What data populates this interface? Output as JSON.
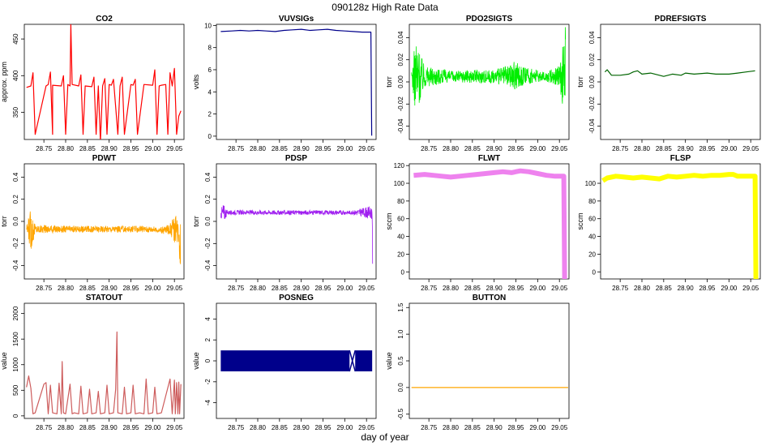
{
  "figure": {
    "title": "090128z   High Rate Data",
    "xlabel": "day of year"
  },
  "chart_data": [
    {
      "id": "co2",
      "type": "line",
      "title": "CO2",
      "ylabel": "approx. ppm",
      "color": "#ff0000",
      "xlim": [
        28.705,
        29.072
      ],
      "ylim": [
        313,
        470
      ],
      "xticks": [
        28.75,
        28.8,
        28.85,
        28.9,
        28.95,
        29.0,
        29.05
      ],
      "yticks": [
        350,
        400,
        450
      ],
      "ytick_labels": [
        "350",
        "400",
        "450"
      ],
      "yrotate": true,
      "x": [
        28.71,
        28.72,
        28.725,
        28.73,
        28.755,
        28.76,
        28.765,
        28.77,
        28.77,
        28.79,
        28.795,
        28.8,
        28.805,
        28.81,
        28.812,
        28.815,
        28.83,
        28.835,
        28.84,
        28.845,
        28.86,
        28.865,
        28.87,
        28.875,
        28.88,
        28.885,
        28.89,
        28.895,
        28.9,
        28.905,
        28.91,
        28.92,
        28.925,
        28.93,
        28.935,
        28.95,
        28.955,
        28.96,
        28.965,
        28.98,
        29.0,
        29.005,
        29.01,
        29.015,
        29.02,
        29.03,
        29.035,
        29.04,
        29.045,
        29.05,
        29.055,
        29.06,
        29.065
      ],
      "y": [
        384,
        386,
        404,
        320,
        386,
        388,
        405,
        320,
        387,
        386,
        400,
        320,
        388,
        386,
        470,
        388,
        386,
        401,
        320,
        386,
        385,
        398,
        320,
        386,
        310,
        386,
        396,
        320,
        388,
        387,
        395,
        320,
        386,
        398,
        320,
        388,
        387,
        395,
        320,
        388,
        387,
        408,
        320,
        386,
        387,
        388,
        320,
        404,
        386,
        410,
        320,
        345,
        352
      ]
    },
    {
      "id": "vuvsigs",
      "type": "line",
      "title": "VUVSIGs",
      "ylabel": "volts",
      "color": "#00008b",
      "xlim": [
        28.705,
        29.072
      ],
      "ylim": [
        -0.3,
        10.1
      ],
      "xticks": [
        28.75,
        28.8,
        28.85,
        28.9,
        28.95,
        29.0,
        29.05
      ],
      "yticks": [
        0,
        2,
        4,
        6,
        8,
        10
      ],
      "ytick_labels": [
        "0",
        "2",
        "4",
        "6",
        "8",
        "10"
      ],
      "yrotate": false,
      "x": [
        28.715,
        28.74,
        28.76,
        28.78,
        28.8,
        28.82,
        28.84,
        28.86,
        28.88,
        28.9,
        28.92,
        28.94,
        28.96,
        28.98,
        29.0,
        29.02,
        29.04,
        29.06,
        29.062
      ],
      "y": [
        9.45,
        9.5,
        9.55,
        9.5,
        9.55,
        9.5,
        9.45,
        9.55,
        9.6,
        9.65,
        9.55,
        9.6,
        9.65,
        9.55,
        9.5,
        9.45,
        9.4,
        9.4,
        0.05
      ]
    },
    {
      "id": "pdo2sigts",
      "type": "noise",
      "title": "PDO2SIGTS",
      "ylabel": "torr",
      "color": "#00ee00",
      "xlim": [
        28.705,
        29.072
      ],
      "ylim": [
        -0.052,
        0.052
      ],
      "xticks": [
        28.75,
        28.8,
        28.85,
        28.9,
        28.95,
        29.0,
        29.05
      ],
      "yticks": [
        -0.04,
        -0.02,
        0.0,
        0.02,
        0.04
      ],
      "ytick_labels": [
        "-0.04",
        "-0.02",
        "0.00",
        "0.02",
        "0.04"
      ],
      "yrotate": true,
      "x": [
        28.71,
        28.72,
        28.74,
        28.8,
        28.85,
        28.9,
        28.93,
        28.95,
        28.97,
        29.0,
        29.01,
        29.03,
        29.05,
        29.058,
        29.064
      ],
      "ymid": [
        0.005,
        0.005,
        0.005,
        0.005,
        0.005,
        0.005,
        0.005,
        0.006,
        0.005,
        0.005,
        0.005,
        0.005,
        0.005,
        0.004,
        0.008
      ],
      "band": [
        0.004,
        0.035,
        0.01,
        0.005,
        0.006,
        0.006,
        0.01,
        0.014,
        0.008,
        0.006,
        0.004,
        0.006,
        0.01,
        0.03,
        0.045
      ]
    },
    {
      "id": "pdrefsigts",
      "type": "line",
      "title": "PDREFSIGTS",
      "ylabel": "torr",
      "color": "#006400",
      "xlim": [
        28.705,
        29.072
      ],
      "ylim": [
        -0.052,
        0.052
      ],
      "xticks": [
        28.75,
        28.8,
        28.85,
        28.9,
        28.95,
        29.0,
        29.05
      ],
      "yticks": [
        -0.04,
        -0.02,
        0.0,
        0.02,
        0.04
      ],
      "ytick_labels": [
        "-0.04",
        "-0.02",
        "0.00",
        "0.02",
        "0.04"
      ],
      "yrotate": true,
      "x": [
        28.715,
        28.72,
        28.73,
        28.75,
        28.77,
        28.78,
        28.79,
        28.8,
        28.82,
        28.84,
        28.85,
        28.87,
        28.89,
        28.9,
        28.92,
        28.95,
        28.97,
        29.0,
        29.02,
        29.04,
        29.06
      ],
      "y": [
        0.009,
        0.011,
        0.006,
        0.006,
        0.007,
        0.009,
        0.01,
        0.007,
        0.008,
        0.006,
        0.005,
        0.007,
        0.006,
        0.008,
        0.007,
        0.008,
        0.007,
        0.007,
        0.008,
        0.009,
        0.01
      ]
    },
    {
      "id": "pdwt",
      "type": "noise",
      "title": "PDWT",
      "ylabel": "torr",
      "color": "#ffa500",
      "xlim": [
        28.705,
        29.072
      ],
      "ylim": [
        -0.52,
        0.52
      ],
      "xticks": [
        28.75,
        28.8,
        28.85,
        28.9,
        28.95,
        29.0,
        29.05
      ],
      "yticks": [
        -0.4,
        -0.2,
        0.0,
        0.2,
        0.4
      ],
      "ytick_labels": [
        "-0.4",
        "-0.2",
        "0.0",
        "0.2",
        "0.4"
      ],
      "yrotate": true,
      "x": [
        28.71,
        28.72,
        28.73,
        28.8,
        28.9,
        29.0,
        29.01,
        29.02,
        29.04,
        29.05,
        29.06,
        29.064
      ],
      "ymid": [
        -0.07,
        -0.07,
        -0.07,
        -0.07,
        -0.07,
        -0.07,
        -0.08,
        -0.08,
        -0.07,
        -0.07,
        -0.07,
        -0.2
      ],
      "band": [
        0.02,
        0.2,
        0.04,
        0.03,
        0.03,
        0.03,
        0.02,
        0.03,
        0.05,
        0.12,
        0.12,
        0.3
      ]
    },
    {
      "id": "pdsp",
      "type": "noise",
      "title": "PDSP",
      "ylabel": "torr",
      "color": "#a020f0",
      "xlim": [
        28.705,
        29.072
      ],
      "ylim": [
        -0.52,
        0.52
      ],
      "xticks": [
        28.75,
        28.8,
        28.85,
        28.9,
        28.95,
        29.0,
        29.05
      ],
      "yticks": [
        -0.4,
        -0.2,
        0.0,
        0.2,
        0.4
      ],
      "ytick_labels": [
        "-0.4",
        "-0.2",
        "0.0",
        "0.2",
        "0.4"
      ],
      "yrotate": true,
      "x": [
        28.715,
        28.72,
        28.73,
        28.8,
        28.9,
        29.0,
        29.01,
        29.02,
        29.05,
        29.058,
        29.063,
        29.064
      ],
      "ymid": [
        0.07,
        0.07,
        0.08,
        0.08,
        0.08,
        0.08,
        0.08,
        0.08,
        0.08,
        0.08,
        0.07,
        -0.3
      ],
      "band": [
        0.03,
        0.1,
        0.02,
        0.02,
        0.02,
        0.02,
        0.015,
        0.02,
        0.05,
        0.06,
        0.05,
        0.3
      ]
    },
    {
      "id": "flwt",
      "type": "line",
      "title": "FLWT",
      "ylabel": "sccm",
      "color": "#ee82ee",
      "linewidth": 6,
      "xlim": [
        28.705,
        29.072
      ],
      "ylim": [
        -8,
        122
      ],
      "xticks": [
        28.75,
        28.8,
        28.85,
        28.9,
        28.95,
        29.0,
        29.05
      ],
      "yticks": [
        0,
        20,
        40,
        60,
        80,
        100,
        120
      ],
      "ytick_labels": [
        "0",
        "20",
        "40",
        "60",
        "80",
        "100",
        "120"
      ],
      "yrotate": false,
      "x": [
        28.715,
        28.74,
        28.76,
        28.78,
        28.8,
        28.82,
        28.84,
        28.86,
        28.88,
        28.9,
        28.92,
        28.94,
        28.96,
        28.98,
        29.0,
        29.01,
        29.02,
        29.04,
        29.06,
        29.062
      ],
      "y": [
        109,
        110,
        109,
        108,
        107,
        108,
        109,
        110,
        111,
        112,
        113,
        112,
        114,
        113,
        111,
        110,
        109,
        108,
        108,
        -8
      ]
    },
    {
      "id": "flsp",
      "type": "line",
      "title": "FLSP",
      "ylabel": "sccm",
      "color": "#ffff00",
      "linewidth": 6,
      "xlim": [
        28.705,
        29.072
      ],
      "ylim": [
        -8,
        122
      ],
      "xticks": [
        28.75,
        28.8,
        28.85,
        28.9,
        28.95,
        29.0,
        29.05
      ],
      "yticks": [
        0,
        20,
        40,
        60,
        80,
        100
      ],
      "ytick_labels": [
        "0",
        "20",
        "40",
        "60",
        "80",
        "100"
      ],
      "yrotate": false,
      "x": [
        28.71,
        28.72,
        28.74,
        28.76,
        28.78,
        28.8,
        28.82,
        28.84,
        28.86,
        28.88,
        28.9,
        28.92,
        28.94,
        28.96,
        28.98,
        29.0,
        29.01,
        29.02,
        29.04,
        29.06,
        29.062
      ],
      "y": [
        103,
        106,
        108,
        107,
        106,
        107,
        106,
        105,
        108,
        107,
        108,
        109,
        108,
        109,
        109,
        110,
        110,
        108,
        108,
        108,
        -8
      ]
    },
    {
      "id": "statout",
      "type": "line",
      "title": "STATOUT",
      "ylabel": "value",
      "color": "#cd5c5c",
      "xlim": [
        28.705,
        29.072
      ],
      "ylim": [
        -50,
        2200
      ],
      "xticks": [
        28.75,
        28.8,
        28.85,
        28.9,
        28.95,
        29.0,
        29.05
      ],
      "yticks": [
        0,
        500,
        1000,
        1500,
        2000
      ],
      "ytick_labels": [
        "0",
        "500",
        "1000",
        "1500",
        "2000"
      ],
      "yrotate": true,
      "x": [
        28.71,
        28.715,
        28.72,
        28.725,
        28.73,
        28.75,
        28.755,
        28.76,
        28.765,
        28.77,
        28.78,
        28.785,
        28.79,
        28.792,
        28.795,
        28.8,
        28.81,
        28.815,
        28.82,
        28.83,
        28.835,
        28.84,
        28.85,
        28.855,
        28.86,
        28.87,
        28.875,
        28.88,
        28.89,
        28.895,
        28.9,
        28.91,
        28.915,
        28.918,
        28.92,
        28.93,
        28.935,
        28.94,
        28.95,
        28.955,
        28.96,
        28.97,
        28.98,
        28.985,
        28.99,
        29.0,
        29.005,
        29.01,
        29.02,
        29.04,
        29.045,
        29.05,
        29.052,
        29.055,
        29.058,
        29.06,
        29.062,
        29.065
      ],
      "y": [
        560,
        780,
        540,
        40,
        60,
        620,
        650,
        40,
        600,
        60,
        40,
        640,
        40,
        1060,
        60,
        40,
        620,
        40,
        60,
        40,
        580,
        40,
        60,
        520,
        40,
        60,
        480,
        40,
        60,
        600,
        40,
        60,
        520,
        1640,
        60,
        40,
        560,
        40,
        60,
        600,
        40,
        60,
        40,
        720,
        40,
        60,
        560,
        40,
        60,
        720,
        40,
        700,
        40,
        650,
        40,
        660,
        40,
        620
      ]
    },
    {
      "id": "posneg",
      "type": "band",
      "title": "POSNEG",
      "ylabel": "value",
      "color": "#00008b",
      "xlim": [
        28.705,
        29.072
      ],
      "ylim": [
        -5.5,
        5.5
      ],
      "xticks": [
        28.75,
        28.8,
        28.85,
        28.9,
        28.95,
        29.0,
        29.05
      ],
      "yticks": [
        -4,
        -2,
        0,
        2,
        4
      ],
      "ytick_labels": [
        "-4",
        "-2",
        "0",
        "2",
        "4"
      ],
      "yrotate": true,
      "segments": [
        [
          28.715,
          29.011
        ],
        [
          29.024,
          29.063
        ]
      ],
      "bottom": -1,
      "top": 1
    },
    {
      "id": "button",
      "type": "line",
      "title": "BUTTON",
      "ylabel": "value",
      "color": "#ffa500",
      "xlim": [
        28.705,
        29.072
      ],
      "ylim": [
        -0.58,
        1.58
      ],
      "xticks": [
        28.75,
        28.8,
        28.85,
        28.9,
        28.95,
        29.0,
        29.05
      ],
      "yticks": [
        -0.5,
        0.0,
        0.5,
        1.0,
        1.5
      ],
      "ytick_labels": [
        "-0.5",
        "0.0",
        "0.5",
        "1.0",
        "1.5"
      ],
      "yrotate": true,
      "x": [
        28.71,
        29.07
      ],
      "y": [
        0,
        0
      ]
    }
  ]
}
